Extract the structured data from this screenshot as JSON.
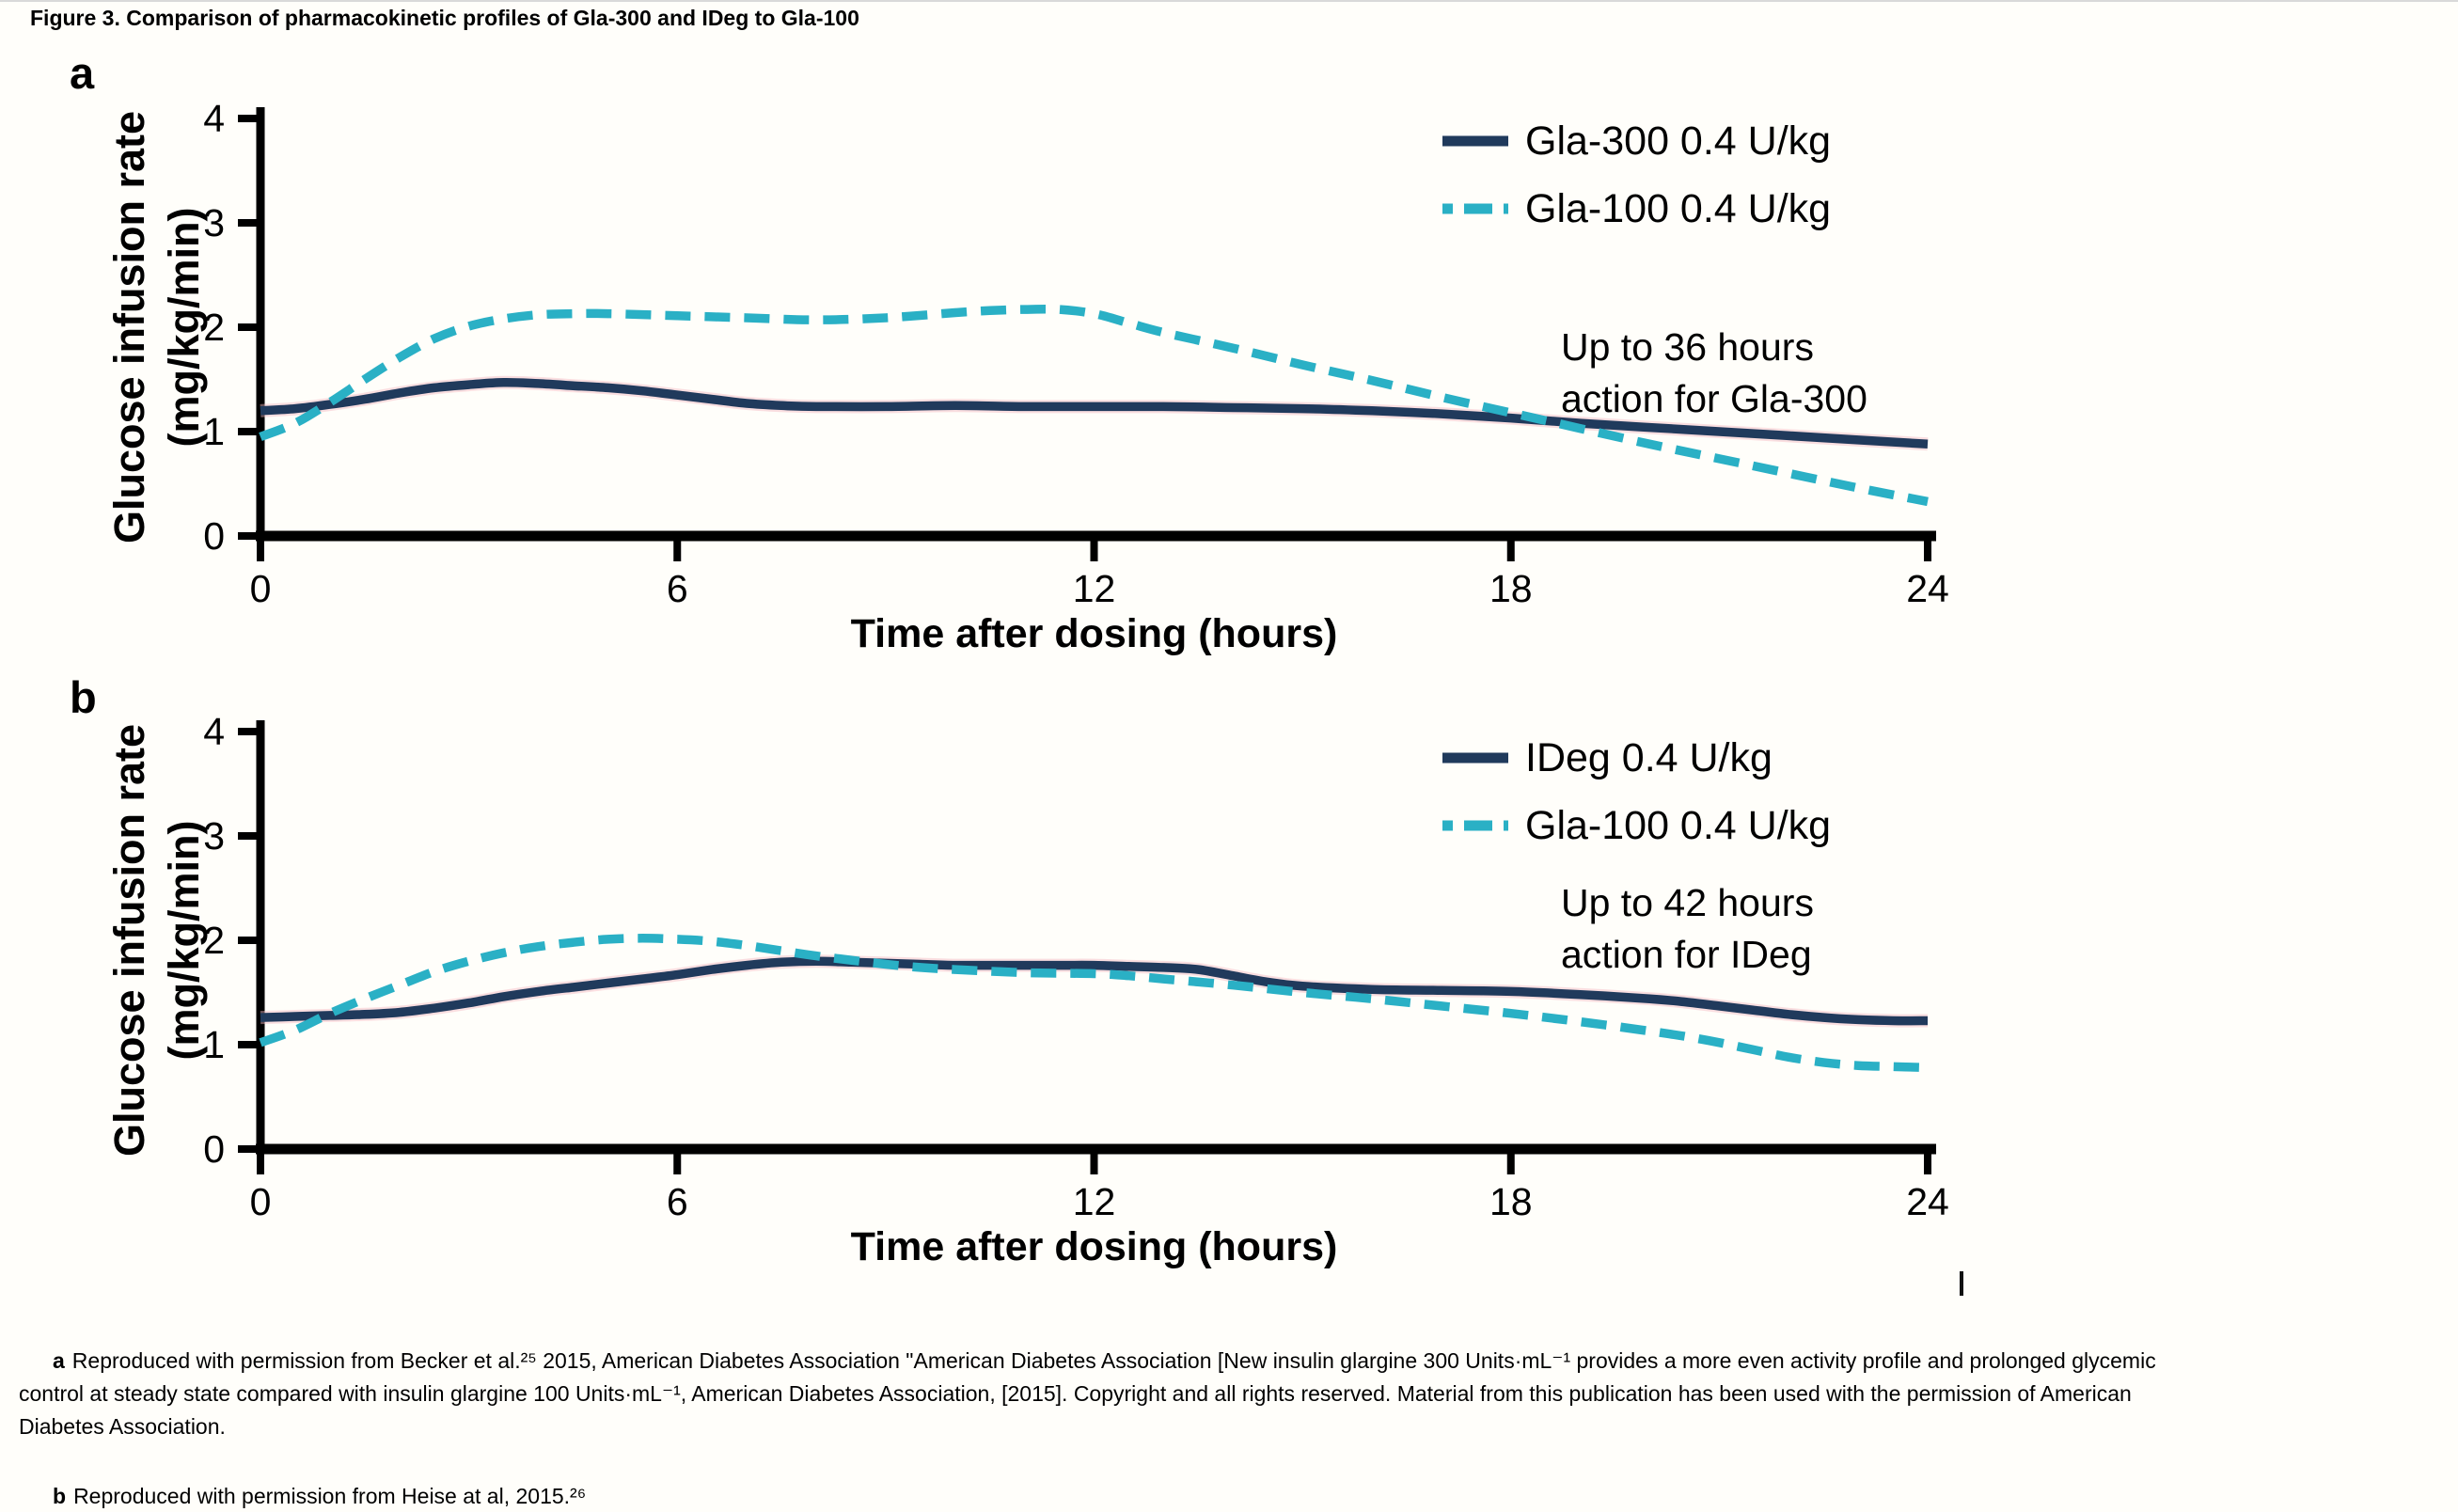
{
  "title": "Figure 3. Comparison of pharmacokinetic profiles of Gla-300 and IDeg to Gla-100",
  "colors": {
    "navy": "#203a5c",
    "cyan": "#2ab0c5",
    "axis": "#000000",
    "halo_pink": "#f5b9c0"
  },
  "chart_data": [
    {
      "id": "a",
      "panel_label": "a",
      "type": "line",
      "xlabel": "Time after dosing (hours)",
      "ylabel_line1": "Glucose infusion rate",
      "ylabel_line2": "(mg/kg/min)",
      "xlim": [
        0,
        24
      ],
      "ylim": [
        0,
        4
      ],
      "xticks": [
        0,
        6,
        12,
        18,
        24
      ],
      "yticks": [
        0,
        1,
        2,
        3,
        4
      ],
      "grid": false,
      "legend_position": "top-right",
      "annotation_lines": [
        "Up to 36 hours",
        "action for Gla-300"
      ],
      "series": [
        {
          "name": "Gla-300 0.4 U/kg",
          "style": "solid",
          "color": "#203a5c",
          "x": [
            0,
            0.5,
            1,
            1.5,
            2,
            2.5,
            3,
            3.5,
            4,
            4.5,
            5,
            5.5,
            6,
            6.5,
            7,
            7.5,
            8,
            9,
            10,
            11,
            12,
            13,
            14,
            15,
            16,
            17,
            18,
            19,
            20,
            21,
            22,
            23,
            24
          ],
          "y": [
            1.2,
            1.22,
            1.26,
            1.31,
            1.37,
            1.42,
            1.45,
            1.47,
            1.46,
            1.44,
            1.42,
            1.39,
            1.35,
            1.31,
            1.27,
            1.25,
            1.24,
            1.24,
            1.25,
            1.24,
            1.24,
            1.24,
            1.23,
            1.22,
            1.2,
            1.17,
            1.13,
            1.08,
            1.04,
            1.0,
            0.96,
            0.92,
            0.88
          ]
        },
        {
          "name": "Gla-100 0.4 U/kg",
          "style": "dashed",
          "color": "#2ab0c5",
          "x": [
            0,
            0.5,
            1,
            1.5,
            2,
            2.5,
            3,
            3.5,
            4,
            4.5,
            5,
            6,
            7,
            8,
            9,
            10,
            10.5,
            11,
            11.5,
            12,
            12.5,
            13,
            14,
            15,
            16,
            17,
            18,
            19,
            20,
            21,
            22,
            23,
            24
          ],
          "y": [
            0.95,
            1.08,
            1.28,
            1.5,
            1.71,
            1.89,
            2.01,
            2.08,
            2.12,
            2.13,
            2.13,
            2.11,
            2.09,
            2.07,
            2.09,
            2.14,
            2.16,
            2.17,
            2.17,
            2.13,
            2.04,
            1.95,
            1.8,
            1.64,
            1.49,
            1.33,
            1.18,
            1.03,
            0.88,
            0.74,
            0.6,
            0.46,
            0.33
          ]
        }
      ]
    },
    {
      "id": "b",
      "panel_label": "b",
      "type": "line",
      "xlabel": "Time after dosing (hours)",
      "ylabel_line1": "Glucose infusion rate",
      "ylabel_line2": "(mg/kg/min)",
      "xlim": [
        0,
        24
      ],
      "ylim": [
        0,
        4
      ],
      "xticks": [
        0,
        6,
        12,
        18,
        24
      ],
      "yticks": [
        0,
        1,
        2,
        3,
        4
      ],
      "grid": false,
      "legend_position": "top-right",
      "annotation_lines": [
        "Up to 42 hours",
        "action for IDeg"
      ],
      "series": [
        {
          "name": "IDeg 0.4 U/kg",
          "style": "solid",
          "color": "#203a5c",
          "x": [
            0,
            0.5,
            1,
            1.5,
            2,
            2.5,
            3,
            3.5,
            4,
            4.5,
            5,
            5.5,
            6,
            6.5,
            7,
            7.5,
            8,
            8.5,
            9,
            9.5,
            10,
            10.5,
            11,
            11.5,
            12,
            12.5,
            13,
            13.5,
            14,
            14.5,
            15,
            16,
            17,
            18,
            19,
            20,
            20.5,
            21,
            21.5,
            22,
            22.5,
            23,
            23.5,
            24
          ],
          "y": [
            1.26,
            1.27,
            1.28,
            1.29,
            1.31,
            1.35,
            1.4,
            1.46,
            1.51,
            1.55,
            1.59,
            1.63,
            1.67,
            1.72,
            1.76,
            1.79,
            1.8,
            1.79,
            1.78,
            1.77,
            1.76,
            1.76,
            1.76,
            1.76,
            1.76,
            1.75,
            1.74,
            1.72,
            1.66,
            1.6,
            1.56,
            1.53,
            1.52,
            1.51,
            1.48,
            1.44,
            1.41,
            1.37,
            1.33,
            1.29,
            1.26,
            1.24,
            1.23,
            1.23
          ]
        },
        {
          "name": "Gla-100 0.4 U/kg",
          "style": "dashed",
          "color": "#2ab0c5",
          "x": [
            0,
            0.5,
            1,
            1.5,
            2,
            2.5,
            3,
            3.5,
            4,
            4.5,
            5,
            5.5,
            6,
            6.5,
            7,
            7.5,
            8,
            8.5,
            9,
            9.5,
            10,
            11,
            12,
            12.5,
            13,
            14,
            15,
            16,
            17,
            18,
            19,
            20,
            20.5,
            21,
            21.5,
            22,
            22.5,
            23,
            23.5,
            24
          ],
          "y": [
            1.02,
            1.14,
            1.3,
            1.44,
            1.57,
            1.7,
            1.8,
            1.88,
            1.94,
            1.98,
            2.01,
            2.02,
            2.01,
            1.99,
            1.95,
            1.9,
            1.85,
            1.81,
            1.77,
            1.74,
            1.72,
            1.69,
            1.68,
            1.66,
            1.63,
            1.57,
            1.5,
            1.44,
            1.37,
            1.3,
            1.22,
            1.13,
            1.08,
            1.02,
            0.95,
            0.88,
            0.83,
            0.8,
            0.79,
            0.78
          ]
        }
      ]
    }
  ],
  "footnotes": {
    "a": {
      "marker": "a",
      "lines": [
        "Reproduced with permission from Becker et al.²⁵ 2015, American Diabetes Association \"American Diabetes Association [New insulin glargine 300 Units·mL⁻¹ provides a more even activity profile and prolonged glycemic",
        "control at steady state compared with insulin glargine 100 Units·mL⁻¹, American Diabetes Association, [2015]. Copyright and all rights reserved. Material from this publication has been used with the permission of American",
        "Diabetes Association."
      ]
    },
    "b": {
      "marker": "b",
      "text": "Reproduced with permission from Heise at al, 2015.²⁶"
    }
  }
}
